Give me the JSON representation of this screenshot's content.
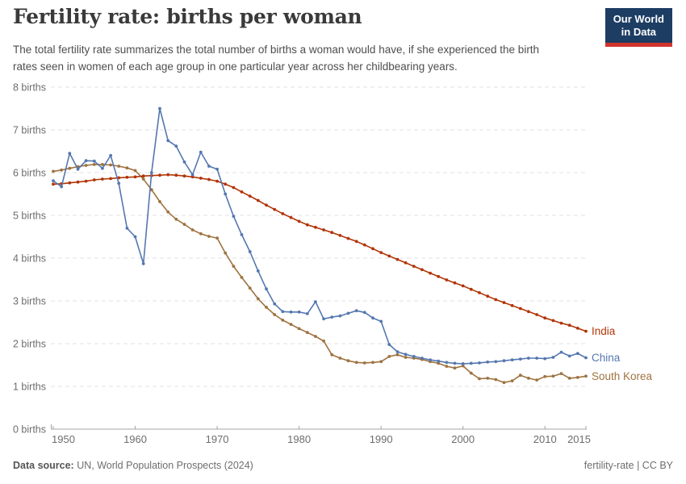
{
  "header": {
    "title": "Fertility rate: births per woman",
    "subtitle_line1": "The total fertility rate summarizes the total number of births a woman would have, if she experienced the birth",
    "subtitle_line2": "rates seen in women of each age group in one particular year across her childbearing years.",
    "logo_line1": "Our World",
    "logo_line2": "in Data",
    "logo_bg_color": "#1d3d63",
    "logo_accent_color": "#d0342c"
  },
  "footer": {
    "source_label": "Data source:",
    "source_text": "UN, World Population Prospects (2024)",
    "license_text": "fertility-rate | CC BY"
  },
  "chart_data": {
    "type": "line",
    "title": "Fertility rate: births per woman",
    "ylabel": "births",
    "xlim": [
      1950,
      2015
    ],
    "ylim": [
      0,
      8
    ],
    "grid": "horizontal-dashed",
    "legend_position": "line-end-labels",
    "x_ticks": [
      1950,
      1960,
      1970,
      1980,
      1990,
      2000,
      2010,
      2015
    ],
    "y_ticks": [
      {
        "value": 0,
        "label": "0 births"
      },
      {
        "value": 1,
        "label": "1 births"
      },
      {
        "value": 2,
        "label": "2 births"
      },
      {
        "value": 3,
        "label": "3 births"
      },
      {
        "value": 4,
        "label": "4 births"
      },
      {
        "value": 5,
        "label": "5 births"
      },
      {
        "value": 6,
        "label": "6 births"
      },
      {
        "value": 7,
        "label": "7 births"
      },
      {
        "value": 8,
        "label": "8 births"
      }
    ],
    "years": [
      1950,
      1951,
      1952,
      1953,
      1954,
      1955,
      1956,
      1957,
      1958,
      1959,
      1960,
      1961,
      1962,
      1963,
      1964,
      1965,
      1966,
      1967,
      1968,
      1969,
      1970,
      1971,
      1972,
      1973,
      1974,
      1975,
      1976,
      1977,
      1978,
      1979,
      1980,
      1981,
      1982,
      1983,
      1984,
      1985,
      1986,
      1987,
      1988,
      1989,
      1990,
      1991,
      1992,
      1993,
      1994,
      1995,
      1996,
      1997,
      1998,
      1999,
      2000,
      2001,
      2002,
      2003,
      2004,
      2005,
      2006,
      2007,
      2008,
      2009,
      2010,
      2011,
      2012,
      2013,
      2014,
      2015
    ],
    "series": [
      {
        "name": "South Korea",
        "color": "#9e7340",
        "values": [
          6.03,
          6.06,
          6.1,
          6.14,
          6.17,
          6.19,
          6.19,
          6.18,
          6.15,
          6.11,
          6.05,
          5.85,
          5.6,
          5.32,
          5.08,
          4.91,
          4.79,
          4.66,
          4.57,
          4.51,
          4.47,
          4.12,
          3.81,
          3.55,
          3.3,
          3.05,
          2.85,
          2.68,
          2.55,
          2.45,
          2.35,
          2.26,
          2.17,
          2.06,
          1.74,
          1.66,
          1.6,
          1.56,
          1.55,
          1.56,
          1.58,
          1.7,
          1.74,
          1.68,
          1.66,
          1.63,
          1.58,
          1.54,
          1.47,
          1.43,
          1.48,
          1.31,
          1.18,
          1.19,
          1.16,
          1.09,
          1.13,
          1.26,
          1.19,
          1.15,
          1.23,
          1.24,
          1.3,
          1.19,
          1.21,
          1.24
        ]
      },
      {
        "name": "India",
        "color": "#b13507",
        "values": [
          5.73,
          5.74,
          5.76,
          5.78,
          5.8,
          5.83,
          5.85,
          5.86,
          5.88,
          5.89,
          5.9,
          5.92,
          5.93,
          5.94,
          5.95,
          5.94,
          5.92,
          5.9,
          5.87,
          5.84,
          5.8,
          5.73,
          5.65,
          5.55,
          5.45,
          5.35,
          5.24,
          5.14,
          5.04,
          4.95,
          4.86,
          4.78,
          4.72,
          4.66,
          4.6,
          4.53,
          4.46,
          4.39,
          4.31,
          4.22,
          4.13,
          4.05,
          3.97,
          3.89,
          3.81,
          3.73,
          3.65,
          3.57,
          3.49,
          3.42,
          3.35,
          3.27,
          3.19,
          3.11,
          3.03,
          2.96,
          2.89,
          2.82,
          2.75,
          2.68,
          2.6,
          2.54,
          2.48,
          2.43,
          2.36,
          2.29
        ]
      },
      {
        "name": "China",
        "color": "#5577b0",
        "values": [
          5.81,
          5.67,
          6.45,
          6.08,
          6.28,
          6.27,
          6.1,
          6.4,
          5.75,
          4.7,
          4.5,
          3.87,
          6.0,
          7.5,
          6.75,
          6.62,
          6.25,
          5.95,
          6.48,
          6.15,
          6.08,
          5.5,
          4.98,
          4.55,
          4.15,
          3.7,
          3.28,
          2.93,
          2.75,
          2.74,
          2.74,
          2.7,
          2.98,
          2.58,
          2.62,
          2.65,
          2.71,
          2.77,
          2.73,
          2.6,
          2.52,
          1.98,
          1.81,
          1.75,
          1.7,
          1.66,
          1.62,
          1.59,
          1.56,
          1.54,
          1.53,
          1.54,
          1.55,
          1.57,
          1.58,
          1.6,
          1.62,
          1.64,
          1.66,
          1.66,
          1.65,
          1.68,
          1.8,
          1.71,
          1.77,
          1.67
        ]
      }
    ]
  }
}
